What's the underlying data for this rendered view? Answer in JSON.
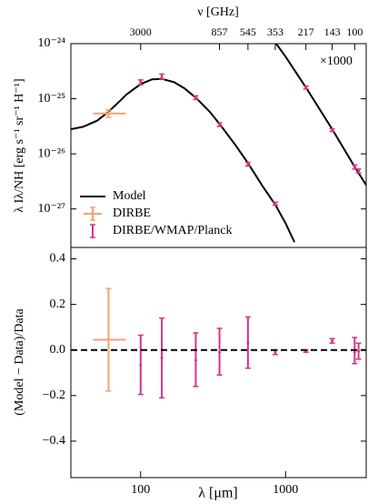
{
  "chart_data": [
    {
      "type": "errorbar",
      "xscale": "log",
      "yscale": "log",
      "x2label": "ν [GHz]",
      "ylabel": "λ Iλ/NH [erg s⁻¹ sr⁻¹ H⁻¹]",
      "xlim": [
        33,
        3600
      ],
      "ylim": [
        2e-28,
        1e-24
      ],
      "yticks": [
        {
          "value": 1e-24,
          "label": "10⁻²⁴"
        },
        {
          "value": 1e-25,
          "label": "10⁻²⁵"
        },
        {
          "value": 1e-26,
          "label": "10⁻²⁶"
        },
        {
          "value": 1e-27,
          "label": "10⁻²⁷"
        }
      ],
      "x2ticks": [
        {
          "value": 100,
          "label": "3000"
        },
        {
          "value": 350,
          "label": "857"
        },
        {
          "value": 550,
          "label": "545"
        },
        {
          "value": 849,
          "label": "353"
        },
        {
          "value": 1382,
          "label": "217"
        },
        {
          "value": 2098,
          "label": "143"
        },
        {
          "value": 2998,
          "label": "100"
        }
      ],
      "legend": "lower left",
      "annotation": "×1000",
      "model": {
        "name": "Model",
        "color": "#000000",
        "x": [
          33,
          40,
          50,
          60,
          70,
          80,
          100,
          120,
          140,
          170,
          200,
          240,
          300,
          350,
          450,
          550,
          700,
          849,
          1000,
          1150
        ],
        "values": [
          2.8e-26,
          3.1e-26,
          4e-26,
          5.8e-26,
          8.5e-26,
          1.2e-25,
          1.85e-25,
          2.25e-25,
          2.3e-25,
          2e-25,
          1.55e-25,
          1.05e-25,
          5.8e-26,
          3.5e-26,
          1.45e-26,
          6.8e-27,
          2.5e-27,
          1.2e-27,
          5.5e-28,
          2.5e-28
        ]
      },
      "model_scaled": {
        "color": "#000000",
        "x": [
          800,
          850,
          1000,
          1382,
          2098,
          2998,
          3600
        ],
        "values": [
          1.4e-24,
          1.05e-24,
          5.8e-25,
          1.6e-25,
          2.8e-26,
          5.8e-27,
          2.7e-27
        ]
      },
      "series": [
        {
          "name": "DIRBE",
          "color": "#f4a070",
          "x": [
            60
          ],
          "x_lo": [
            47
          ],
          "x_hi": [
            79
          ],
          "values": [
            5.4e-26
          ],
          "y_lo": [
            4.6e-26
          ],
          "y_hi": [
            6.3e-26
          ]
        },
        {
          "name": "DIRBE/WMAP/Planck",
          "color": "#d63384",
          "x": [
            100,
            140,
            240,
            350,
            550,
            849,
            1382,
            2098,
            2998,
            3189
          ],
          "values": [
            2e-25,
            2.5e-25,
            1.05e-25,
            3.4e-26,
            6.5e-27,
            1.25e-27,
            1.6e-25,
            2.7e-26,
            5.8e-27,
            4.9e-27
          ],
          "y_lo": [
            1.8e-25,
            2.25e-25,
            9.7e-26,
            3.15e-26,
            6e-27,
            1.17e-27,
            1.5e-25,
            2.55e-26,
            5.3e-27,
            4.5e-27
          ],
          "y_hi": [
            2.2e-25,
            2.8e-25,
            1.13e-25,
            3.65e-26,
            7e-27,
            1.33e-27,
            1.7e-25,
            2.85e-26,
            6.3e-27,
            5.3e-27
          ]
        }
      ]
    },
    {
      "type": "errorbar",
      "xscale": "log",
      "xlabel": "λ [μm]",
      "ylabel": "(Model − Data)/Data",
      "xlim": [
        33,
        3600
      ],
      "ylim": [
        -0.56,
        0.45
      ],
      "xticks": [
        100,
        1000
      ],
      "yticks": [
        {
          "value": -0.4,
          "label": "−0.4"
        },
        {
          "value": -0.2,
          "label": "−0.2"
        },
        {
          "value": 0,
          "label": "0.0"
        },
        0.2,
        0.4
      ],
      "hline": 0,
      "series": [
        {
          "color": "#f4a070",
          "x": [
            60
          ],
          "x_lo": [
            47
          ],
          "x_hi": [
            79
          ],
          "values": [
            0.045
          ],
          "y_lo": [
            -0.18
          ],
          "y_hi": [
            0.27
          ]
        },
        {
          "color": "#d63384",
          "x": [
            100,
            140,
            240,
            350,
            550,
            849,
            1382,
            2098,
            2998,
            3189
          ],
          "values": [
            -0.065,
            -0.035,
            -0.045,
            -0.01,
            0.03,
            -0.01,
            -0.005,
            0.04,
            -0.01,
            -0.005
          ],
          "y_lo": [
            -0.195,
            -0.21,
            -0.16,
            -0.11,
            -0.08,
            -0.02,
            -0.01,
            0.03,
            -0.06,
            -0.04
          ],
          "y_hi": [
            0.065,
            0.14,
            0.075,
            0.095,
            0.145,
            0.0,
            0.0,
            0.05,
            0.055,
            0.03
          ]
        }
      ]
    }
  ]
}
